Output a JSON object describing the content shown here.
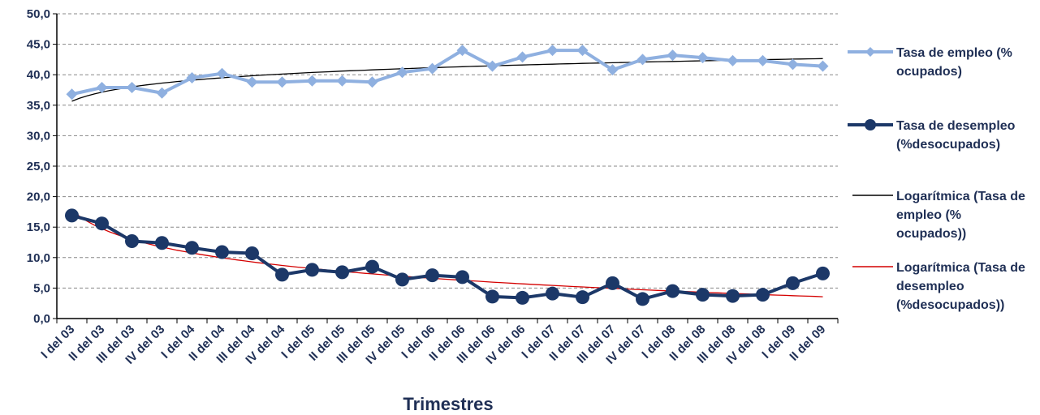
{
  "chart_data": {
    "type": "line",
    "xlabel": "Trimestres",
    "ylabel": "",
    "ylim": [
      0,
      50
    ],
    "yticks": [
      "0,0",
      "5,0",
      "10,0",
      "15,0",
      "20,0",
      "25,0",
      "30,0",
      "35,0",
      "40,0",
      "45,0",
      "50,0"
    ],
    "grid": true,
    "legend_position": "right",
    "categories": [
      "I del 03",
      "II del 03",
      "III del 03",
      "IV del 03",
      "I del 04",
      "II del 04",
      "III del 04",
      "IV del 04",
      "I del 05",
      "II del 05",
      "III del 05",
      "IV del 05",
      "I del 06",
      "II del 06",
      "III del 06",
      "IV del 06",
      "I del 07",
      "II del 07",
      "III del 07",
      "IV del 07",
      "I del 08",
      "II del 08",
      "III del 08",
      "IV del 08",
      "I del 09",
      "II del 09"
    ],
    "series": [
      {
        "name": "Tasa de empleo (% ocupados)",
        "color": "#8fb0e0",
        "values": [
          36.8,
          37.9,
          37.9,
          37.0,
          39.5,
          40.2,
          38.8,
          38.8,
          39.0,
          39.0,
          38.8,
          40.4,
          41.0,
          44.0,
          41.4,
          42.9,
          44.0,
          44.0,
          40.8,
          42.5,
          43.2,
          42.8,
          42.3,
          42.3,
          41.7,
          41.4
        ]
      },
      {
        "name": "Tasa de desempleo (%desocupados)",
        "color": "#1c3868",
        "values": [
          16.9,
          15.6,
          12.7,
          12.4,
          11.6,
          10.9,
          10.7,
          7.2,
          8.0,
          7.6,
          8.5,
          6.4,
          7.1,
          6.8,
          3.6,
          3.4,
          4.1,
          3.5,
          5.8,
          3.2,
          4.5,
          3.9,
          3.7,
          3.9,
          5.8,
          7.4
        ]
      },
      {
        "name": "Logarítmica (Tasa de empleo (% ocupados))",
        "color": "#000000",
        "trendline_of": 0
      },
      {
        "name": "Logarítmica (Tasa de desempleo (%desocupados))",
        "color": "#d40000",
        "trendline_of": 1
      }
    ]
  },
  "legend": {
    "items": [
      {
        "label": "Tasa de empleo (% ocupados)",
        "icon": "diamond-line"
      },
      {
        "label": "Tasa de desempleo (%desocupados)",
        "icon": "circle-line"
      },
      {
        "label": "Logarítmica (Tasa de empleo (% ocupados))",
        "icon": "line"
      },
      {
        "label": "Logarítmica (Tasa de desempleo (%desocupados))",
        "icon": "line"
      }
    ]
  }
}
